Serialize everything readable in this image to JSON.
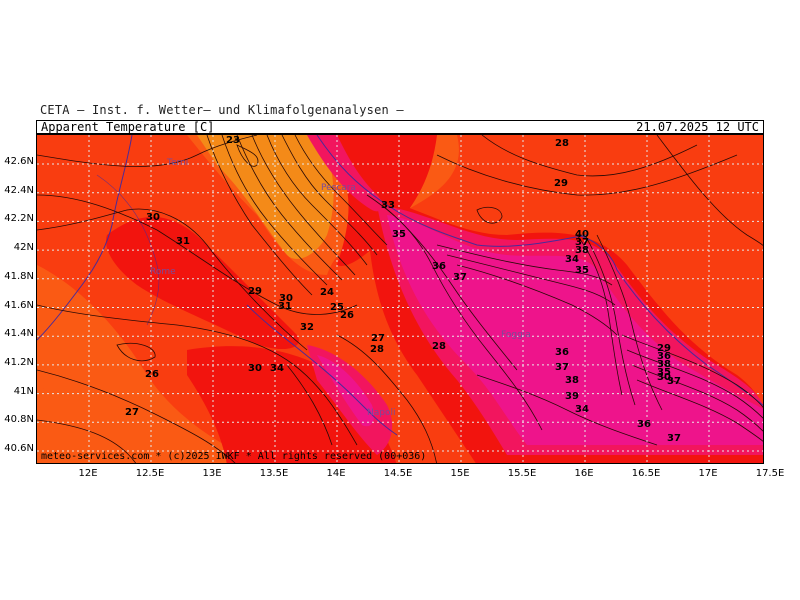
{
  "header": {
    "source_line": "CETA — Inst. f. Wetter— und Klimafolgenanalysen —",
    "parameter": "Apparent_Temperature [C]",
    "valid_time": "21.07.2025 12 UTC"
  },
  "credit": "meteo-services.com * (c)2025 IWKF * All rights reserved (00+036)",
  "axes": {
    "lat_labels": [
      "42.6N",
      "42.4N",
      "42.2N",
      "42N",
      "41.8N",
      "41.6N",
      "41.4N",
      "41.2N",
      "41N",
      "40.8N",
      "40.6N"
    ],
    "lon_labels": [
      "12E",
      "12.5E",
      "13E",
      "13.5E",
      "14E",
      "14.5E",
      "15E",
      "15.5E",
      "16E",
      "16.5E",
      "17E",
      "17.5E"
    ]
  },
  "cities": [
    "Terni",
    "Pescara",
    "Rome",
    "Foggia",
    "Napoli"
  ],
  "contour_labels": [
    "23",
    "28",
    "29",
    "33",
    "30",
    "31",
    "35",
    "36",
    "37",
    "40",
    "37",
    "38",
    "34",
    "35",
    "29",
    "30",
    "31",
    "24",
    "25",
    "26",
    "32",
    "27",
    "28",
    "36",
    "37",
    "38",
    "39",
    "34",
    "36",
    "38",
    "35",
    "37",
    "26",
    "30",
    "28",
    "27",
    "36",
    "37",
    "34",
    "29",
    "30"
  ],
  "colors": {
    "c_le24": "#f48a18",
    "c_24_27": "#fa5a14",
    "c_27_30": "#f93d10",
    "c_30_33": "#f2140e",
    "c_33_36": "#f2155e",
    "c_ge36": "#ee148b",
    "grid": "#e8e8e8",
    "contour": "#2a0a06"
  }
}
